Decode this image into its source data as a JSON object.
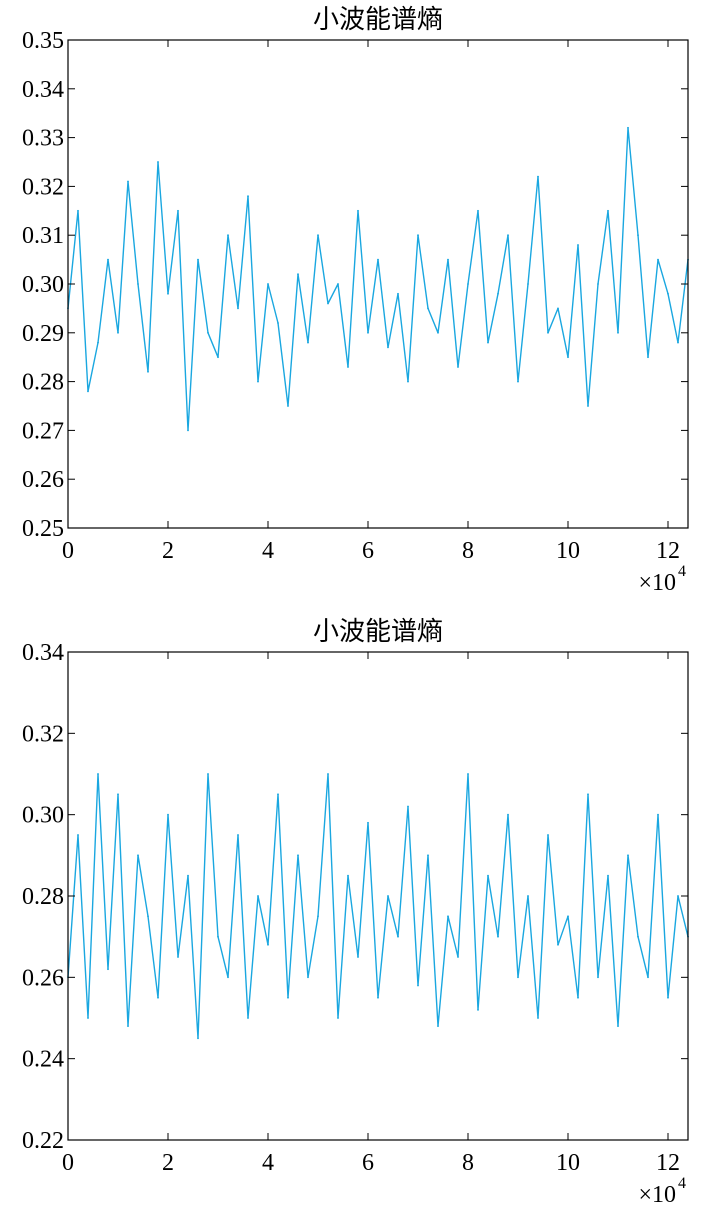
{
  "chart_data": [
    {
      "type": "line",
      "title": "小波能谱熵",
      "xlabel": "",
      "ylabel": "",
      "x_scale_label": "×10",
      "x_scale_exponent": "4",
      "xlim": [
        0,
        12.4
      ],
      "ylim": [
        0.25,
        0.35
      ],
      "xticks": [
        0,
        2,
        4,
        6,
        8,
        10,
        12
      ],
      "xtick_labels": [
        "0",
        "2",
        "4",
        "6",
        "8",
        "10",
        "12"
      ],
      "yticks": [
        0.25,
        0.26,
        0.27,
        0.28,
        0.29,
        0.3,
        0.31,
        0.32,
        0.33,
        0.34,
        0.35
      ],
      "ytick_labels": [
        "0.25",
        "0.26",
        "0.27",
        "0.28",
        "0.29",
        "0.30",
        "0.31",
        "0.32",
        "0.33",
        "0.34",
        "0.35"
      ],
      "grid": false,
      "legend": "none",
      "series": [
        {
          "color": "#1aa7e0",
          "x": [
            0,
            0.2,
            0.4,
            0.6,
            0.8,
            1.0,
            1.2,
            1.4,
            1.6,
            1.8,
            2.0,
            2.2,
            2.4,
            2.6,
            2.8,
            3.0,
            3.2,
            3.4,
            3.6,
            3.8,
            4.0,
            4.2,
            4.4,
            4.6,
            4.8,
            5.0,
            5.2,
            5.4,
            5.6,
            5.8,
            6.0,
            6.2,
            6.4,
            6.6,
            6.8,
            7.0,
            7.2,
            7.4,
            7.6,
            7.8,
            8.0,
            8.2,
            8.4,
            8.6,
            8.8,
            9.0,
            9.2,
            9.4,
            9.6,
            9.8,
            10.0,
            10.2,
            10.4,
            10.6,
            10.8,
            11.0,
            11.2,
            11.4,
            11.6,
            11.8,
            12.0,
            12.2,
            12.4
          ],
          "y": [
            0.295,
            0.315,
            0.278,
            0.288,
            0.305,
            0.29,
            0.321,
            0.3,
            0.282,
            0.325,
            0.298,
            0.315,
            0.27,
            0.305,
            0.29,
            0.285,
            0.31,
            0.295,
            0.318,
            0.28,
            0.3,
            0.292,
            0.275,
            0.302,
            0.288,
            0.31,
            0.296,
            0.3,
            0.283,
            0.315,
            0.29,
            0.305,
            0.287,
            0.298,
            0.28,
            0.31,
            0.295,
            0.29,
            0.305,
            0.283,
            0.3,
            0.315,
            0.288,
            0.298,
            0.31,
            0.28,
            0.3,
            0.322,
            0.29,
            0.295,
            0.285,
            0.308,
            0.275,
            0.3,
            0.315,
            0.29,
            0.332,
            0.31,
            0.285,
            0.305,
            0.298,
            0.288,
            0.305
          ]
        }
      ]
    },
    {
      "type": "line",
      "title": "小波能谱熵",
      "xlabel": "",
      "ylabel": "",
      "x_scale_label": "×10",
      "x_scale_exponent": "4",
      "xlim": [
        0,
        12.4
      ],
      "ylim": [
        0.22,
        0.34
      ],
      "xticks": [
        0,
        2,
        4,
        6,
        8,
        10,
        12
      ],
      "xtick_labels": [
        "0",
        "2",
        "4",
        "6",
        "8",
        "10",
        "12"
      ],
      "yticks": [
        0.22,
        0.24,
        0.26,
        0.28,
        0.3,
        0.32,
        0.34
      ],
      "ytick_labels": [
        "0.22",
        "0.24",
        "0.26",
        "0.28",
        "0.30",
        "0.32",
        "0.34"
      ],
      "grid": false,
      "legend": "none",
      "series": [
        {
          "color": "#1aa7e0",
          "x": [
            0,
            0.2,
            0.4,
            0.6,
            0.8,
            1.0,
            1.2,
            1.4,
            1.6,
            1.8,
            2.0,
            2.2,
            2.4,
            2.6,
            2.8,
            3.0,
            3.2,
            3.4,
            3.6,
            3.8,
            4.0,
            4.2,
            4.4,
            4.6,
            4.8,
            5.0,
            5.2,
            5.4,
            5.6,
            5.8,
            6.0,
            6.2,
            6.4,
            6.6,
            6.8,
            7.0,
            7.2,
            7.4,
            7.6,
            7.8,
            8.0,
            8.2,
            8.4,
            8.6,
            8.8,
            9.0,
            9.2,
            9.4,
            9.6,
            9.8,
            10.0,
            10.2,
            10.4,
            10.6,
            10.8,
            11.0,
            11.2,
            11.4,
            11.6,
            11.8,
            12.0,
            12.2,
            12.4
          ],
          "y": [
            0.26,
            0.295,
            0.25,
            0.31,
            0.262,
            0.305,
            0.248,
            0.29,
            0.275,
            0.255,
            0.3,
            0.265,
            0.285,
            0.245,
            0.31,
            0.27,
            0.26,
            0.295,
            0.25,
            0.28,
            0.268,
            0.305,
            0.255,
            0.29,
            0.26,
            0.275,
            0.31,
            0.25,
            0.285,
            0.265,
            0.298,
            0.255,
            0.28,
            0.27,
            0.302,
            0.258,
            0.29,
            0.248,
            0.275,
            0.265,
            0.31,
            0.252,
            0.285,
            0.27,
            0.3,
            0.26,
            0.28,
            0.25,
            0.295,
            0.268,
            0.275,
            0.255,
            0.305,
            0.26,
            0.285,
            0.248,
            0.29,
            0.27,
            0.26,
            0.3,
            0.255,
            0.28,
            0.27
          ]
        }
      ]
    }
  ]
}
